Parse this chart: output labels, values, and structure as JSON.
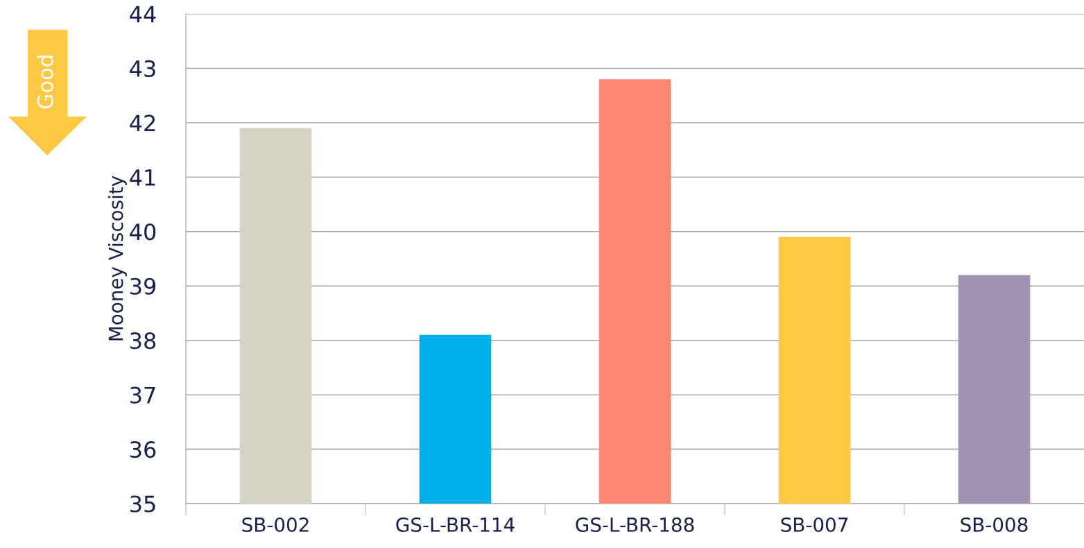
{
  "chart_data": {
    "type": "bar",
    "ylabel": "Mooney Viscosity",
    "categories": [
      "SB-002",
      "GS-L-BR-114",
      "GS-L-BR-188",
      "SB-007",
      "SB-008"
    ],
    "values": [
      41.9,
      38.1,
      42.8,
      39.9,
      39.2
    ],
    "colors": [
      "#d6d3c4",
      "#00b0e6",
      "#ff8874",
      "#ffc844",
      "#a293b3"
    ],
    "ylim": [
      35,
      44
    ],
    "yticks": [
      35,
      36,
      37,
      38,
      39,
      40,
      41,
      42,
      43,
      44
    ],
    "grid": "y",
    "annotations": [
      "Good"
    ]
  }
}
